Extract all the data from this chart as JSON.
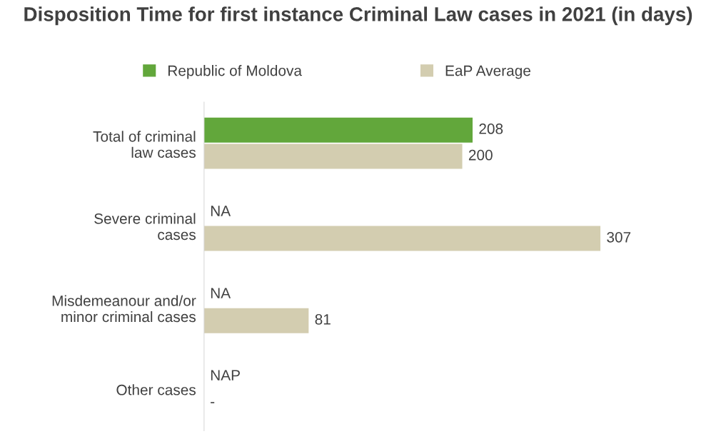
{
  "chart_data": {
    "type": "bar",
    "orientation": "horizontal",
    "title": "Disposition Time for first instance Criminal Law cases in 2021 (in days)",
    "categories": [
      "Total of criminal law cases",
      "Severe criminal cases",
      "Misdemeanour and/or minor criminal cases",
      "Other cases"
    ],
    "series": [
      {
        "name": "Republic of Moldova",
        "color": "#62a73b",
        "values": [
          208,
          null,
          null,
          null
        ],
        "value_labels": [
          "208",
          "NA",
          "NA",
          "NAP"
        ]
      },
      {
        "name": "EaP Average",
        "color": "#d3cdb0",
        "values": [
          200,
          307,
          81,
          null
        ],
        "value_labels": [
          "200",
          "307",
          "81",
          "-"
        ]
      }
    ],
    "legend": "top",
    "grid": false
  }
}
